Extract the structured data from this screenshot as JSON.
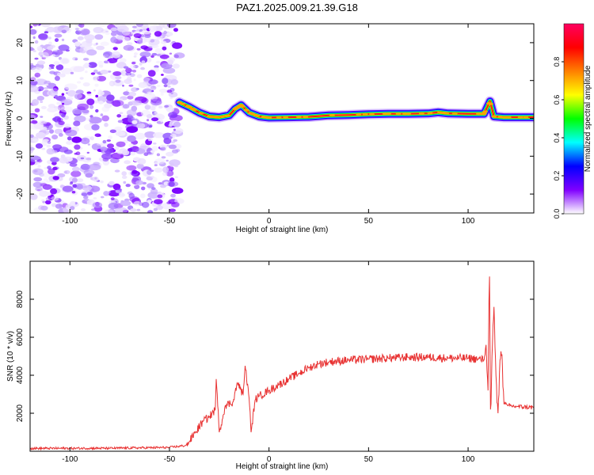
{
  "title": "PAZ1.2025.009.21.39.G18",
  "chart_data": [
    {
      "type": "heatmap",
      "xlabel": "Height of straight line (km)",
      "ylabel": "Frequency (Hz)",
      "xlim": [
        -120,
        133
      ],
      "ylim": [
        -25,
        25
      ],
      "x_ticks": [
        -100,
        -50,
        0,
        50,
        100
      ],
      "y_ticks": [
        -20,
        -10,
        0,
        10,
        20
      ],
      "colorbar": {
        "label": "Normalized spectral amplitude",
        "range": [
          0,
          1
        ],
        "ticks": [
          "0.0",
          "0.2",
          "0.4",
          "0.6",
          "0.8"
        ],
        "colors": [
          "#ffffff",
          "#8000ff",
          "#0000ff",
          "#00ffff",
          "#00ff00",
          "#ffff00",
          "#ff8000",
          "#ff0000",
          "#ff0060"
        ]
      },
      "noise_region_x": [
        -120,
        -45
      ],
      "signal_ridge": {
        "x": [
          -45,
          -40,
          -35,
          -30,
          -25,
          -20,
          -17,
          -14,
          -10,
          -5,
          0,
          10,
          20,
          30,
          40,
          50,
          60,
          70,
          80,
          85,
          90,
          100,
          108,
          111,
          113,
          118,
          125,
          133
        ],
        "frequency": [
          4.2,
          3.0,
          1.5,
          0.5,
          0.3,
          0.8,
          2.5,
          3.5,
          1.5,
          0.5,
          0.2,
          0.3,
          0.4,
          0.8,
          0.9,
          1.1,
          1.2,
          1.2,
          1.3,
          1.6,
          1.3,
          1.2,
          1.2,
          4.5,
          0.5,
          0.3,
          0.3,
          0.3
        ]
      }
    },
    {
      "type": "line",
      "xlabel": "Height of straight line (km)",
      "ylabel": "SNR (10 * v/v)",
      "xlim": [
        -120,
        133
      ],
      "ylim": [
        0,
        10000
      ],
      "x_ticks": [
        -100,
        -50,
        0,
        50,
        100
      ],
      "y_ticks": [
        2000,
        4000,
        6000,
        8000
      ],
      "series": [
        {
          "color": "#e83232",
          "x": [
            -120,
            -80,
            -50,
            -42,
            -40,
            -37,
            -33,
            -30,
            -27,
            -26.5,
            -25,
            -22,
            -18,
            -16,
            -13,
            -12,
            -10,
            -9,
            -7,
            -5,
            0,
            5,
            10,
            15,
            20,
            25,
            30,
            40,
            50,
            60,
            70,
            80,
            90,
            100,
            105,
            108,
            109,
            110,
            110.7,
            111.3,
            112,
            113,
            114,
            115,
            116,
            117,
            118,
            120,
            125,
            133
          ],
          "y": [
            150,
            160,
            200,
            300,
            500,
            1000,
            1600,
            1800,
            2200,
            3800,
            1000,
            2400,
            2600,
            3600,
            3000,
            4500,
            2800,
            1000,
            2700,
            2900,
            3200,
            3500,
            3800,
            4100,
            4400,
            4600,
            4700,
            4800,
            4850,
            4900,
            4950,
            4950,
            4900,
            4900,
            4850,
            4800,
            5600,
            3200,
            9900,
            1500,
            5000,
            7600,
            4000,
            2000,
            4800,
            5100,
            2500,
            2400,
            2350,
            2300
          ]
        }
      ]
    }
  ]
}
